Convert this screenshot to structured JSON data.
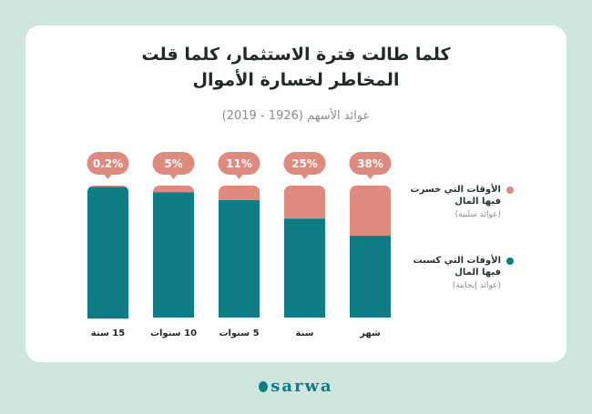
{
  "title_line1": "كلما طالت فترة الاستثمار، كلما قلت",
  "title_line2": "المخاطر لخسارة الأموال",
  "subtitle": "عوائد الأسهم (1926 - 2019)",
  "colors": {
    "negative": "#de8a7e",
    "positive": "#0f7b85",
    "background": "#cfe6dd",
    "card": "#ffffff"
  },
  "legend": [
    {
      "label_line1": "الأوقات التي خسرت",
      "label_line2": "فيها المال",
      "sub": "(عوائد سلبية)",
      "color": "#de8a7e"
    },
    {
      "label_line1": "الأوقات التي كسبت",
      "label_line2": "فيها المال",
      "sub": "(عوائد إيجابية)",
      "color": "#0f7b85"
    }
  ],
  "chart_data": {
    "type": "bar",
    "stacked": true,
    "categories": [
      "15 سنة",
      "10 سنوات",
      "5 سنوات",
      "سنة",
      "شهر"
    ],
    "series": [
      {
        "name": "الأوقات التي خسرت فيها المال",
        "values": [
          0.2,
          5,
          11,
          25,
          38
        ]
      },
      {
        "name": "الأوقات التي كسبت فيها المال",
        "values": [
          99.8,
          95,
          89,
          75,
          62
        ]
      }
    ],
    "data_labels": [
      "0.2%",
      "5%",
      "11%",
      "25%",
      "38%"
    ],
    "ylim": [
      0,
      100
    ],
    "grid": false,
    "legend_position": "right"
  },
  "logo": {
    "text": "sarwa"
  }
}
